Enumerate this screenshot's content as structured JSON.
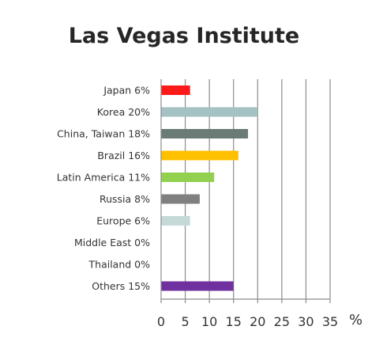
{
  "chart_data": {
    "type": "bar",
    "orientation": "horizontal",
    "title": "Las Vegas Institute",
    "xlabel": "%",
    "ylabel": "",
    "xlim": [
      0,
      35
    ],
    "ticks": [
      0,
      5,
      10,
      15,
      20,
      25,
      30,
      35
    ],
    "tick_labels": [
      "0",
      "5",
      "10",
      "15",
      "20",
      "25",
      "30",
      "35"
    ],
    "grid": "vertical",
    "legend": "none",
    "categories": [
      "Japan 6%",
      "Korea 20%",
      "China, Taiwan 18%",
      "Brazil 16%",
      "Latin America 11%",
      "Russia 8%",
      "Europe 6%",
      "Middle East 0%",
      "Thailand 0%",
      "Others 15%"
    ],
    "values": [
      6,
      20,
      18,
      16,
      11,
      8,
      6,
      0,
      0,
      15
    ],
    "colors": [
      "#ff1a1a",
      "#a4c1c3",
      "#6b7b76",
      "#ffc000",
      "#92d050",
      "#808080",
      "#c5d9d9",
      "#cccccc",
      "#cccccc",
      "#7030a0"
    ]
  }
}
